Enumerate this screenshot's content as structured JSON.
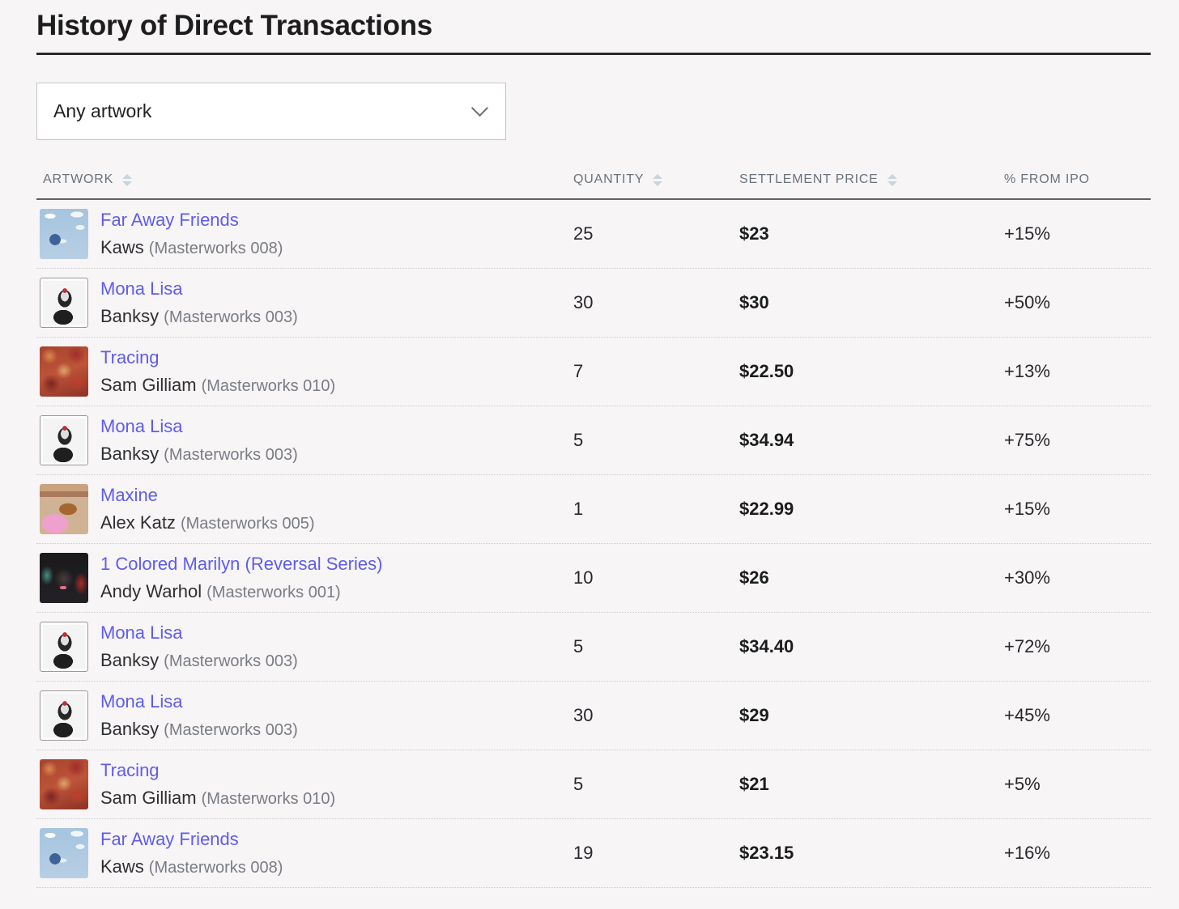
{
  "page": {
    "title": "History of Direct Transactions"
  },
  "filter": {
    "value": "Any artwork"
  },
  "icons": {
    "dropdown_chevron": "chevron-down",
    "column_sort": "sort-up-down-triangles"
  },
  "colors": {
    "background": "#f7f5f6",
    "link_accent": "#5f5ceb",
    "header_text": "#6a737b",
    "sort_icon": "#c7d6dc",
    "price_text": "#1b1c1e"
  },
  "table": {
    "columns": [
      {
        "label": "ARTWORK",
        "sortable": true
      },
      {
        "label": "QUANTITY",
        "sortable": true
      },
      {
        "label": "SETTLEMENT PRICE",
        "sortable": true
      },
      {
        "label": "% FROM IPO",
        "sortable": false
      }
    ],
    "rows": [
      {
        "title": "Far Away Friends",
        "artist": "Kaws",
        "series": "(Masterworks 008)",
        "quantity": "25",
        "price": "$23",
        "from_ipo": "+15%",
        "thumb": "far-away-friends"
      },
      {
        "title": "Mona Lisa",
        "artist": "Banksy",
        "series": "(Masterworks 003)",
        "quantity": "30",
        "price": "$30",
        "from_ipo": "+50%",
        "thumb": "mona-lisa"
      },
      {
        "title": "Tracing",
        "artist": "Sam Gilliam",
        "series": "(Masterworks 010)",
        "quantity": "7",
        "price": "$22.50",
        "from_ipo": "+13%",
        "thumb": "tracing"
      },
      {
        "title": "Mona Lisa",
        "artist": "Banksy",
        "series": "(Masterworks 003)",
        "quantity": "5",
        "price": "$34.94",
        "from_ipo": "+75%",
        "thumb": "mona-lisa"
      },
      {
        "title": "Maxine",
        "artist": "Alex Katz",
        "series": "(Masterworks 005)",
        "quantity": "1",
        "price": "$22.99",
        "from_ipo": "+15%",
        "thumb": "maxine"
      },
      {
        "title": "1 Colored Marilyn (Reversal Series)",
        "artist": "Andy Warhol",
        "series": "(Masterworks 001)",
        "quantity": "10",
        "price": "$26",
        "from_ipo": "+30%",
        "thumb": "marilyn"
      },
      {
        "title": "Mona Lisa",
        "artist": "Banksy",
        "series": "(Masterworks 003)",
        "quantity": "5",
        "price": "$34.40",
        "from_ipo": "+72%",
        "thumb": "mona-lisa"
      },
      {
        "title": "Mona Lisa",
        "artist": "Banksy",
        "series": "(Masterworks 003)",
        "quantity": "30",
        "price": "$29",
        "from_ipo": "+45%",
        "thumb": "mona-lisa"
      },
      {
        "title": "Tracing",
        "artist": "Sam Gilliam",
        "series": "(Masterworks 010)",
        "quantity": "5",
        "price": "$21",
        "from_ipo": "+5%",
        "thumb": "tracing"
      },
      {
        "title": "Far Away Friends",
        "artist": "Kaws",
        "series": "(Masterworks 008)",
        "quantity": "19",
        "price": "$23.15",
        "from_ipo": "+16%",
        "thumb": "far-away-friends"
      }
    ]
  }
}
